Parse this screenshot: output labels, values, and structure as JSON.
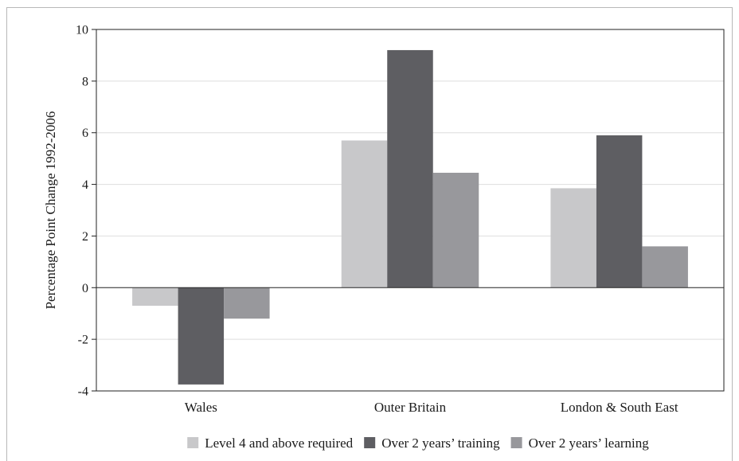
{
  "chart_data": {
    "type": "bar",
    "title": "",
    "xlabel": "",
    "ylabel": "Percentage Point Change 1992-2006",
    "ylim": [
      -4,
      10
    ],
    "yticks": [
      10,
      8,
      6,
      4,
      2,
      0,
      -2,
      -4
    ],
    "ytick_labels": [
      "10",
      "8",
      "6",
      "4",
      "2",
      "0",
      "-2",
      "-4"
    ],
    "categories": [
      "Wales",
      "Outer Britain",
      "London & South East"
    ],
    "grid": "horizontal",
    "legend_position": "bottom",
    "series": [
      {
        "name": "Level 4 and above required",
        "color": "#c8c8ca",
        "values": [
          -0.7,
          5.7,
          3.85
        ]
      },
      {
        "name": "Over 2 years’ training",
        "color": "#5e5e62",
        "values": [
          -3.75,
          9.2,
          5.9
        ]
      },
      {
        "name": "Over 2 years’ learning",
        "color": "#98989c",
        "values": [
          -1.2,
          4.45,
          1.6
        ]
      }
    ]
  }
}
